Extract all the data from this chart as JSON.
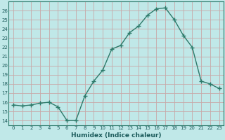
{
  "x": [
    0,
    1,
    2,
    3,
    4,
    5,
    6,
    7,
    8,
    9,
    10,
    11,
    12,
    13,
    14,
    15,
    16,
    17,
    18,
    19,
    20,
    21,
    22,
    23
  ],
  "y": [
    15.7,
    15.6,
    15.7,
    15.9,
    16.0,
    15.5,
    14.0,
    14.0,
    16.7,
    18.3,
    19.5,
    21.8,
    22.2,
    23.6,
    24.3,
    25.5,
    26.2,
    26.3,
    25.0,
    23.3,
    22.0,
    18.3,
    18.0,
    17.5
  ],
  "xlabel": "Humidex (Indice chaleur)",
  "ylim": [
    13.5,
    27.0
  ],
  "yticks": [
    14,
    15,
    16,
    17,
    18,
    19,
    20,
    21,
    22,
    23,
    24,
    25,
    26
  ],
  "xticks": [
    0,
    1,
    2,
    3,
    4,
    5,
    6,
    7,
    8,
    9,
    10,
    11,
    12,
    13,
    14,
    15,
    16,
    17,
    18,
    19,
    20,
    21,
    22,
    23
  ],
  "line_color": "#2d7a6a",
  "bg_color": "#c0e8e8",
  "plot_bg": "#c0e8e8",
  "grid_color_major": "#c8a8a8",
  "grid_color_minor": "#d8b8b8"
}
